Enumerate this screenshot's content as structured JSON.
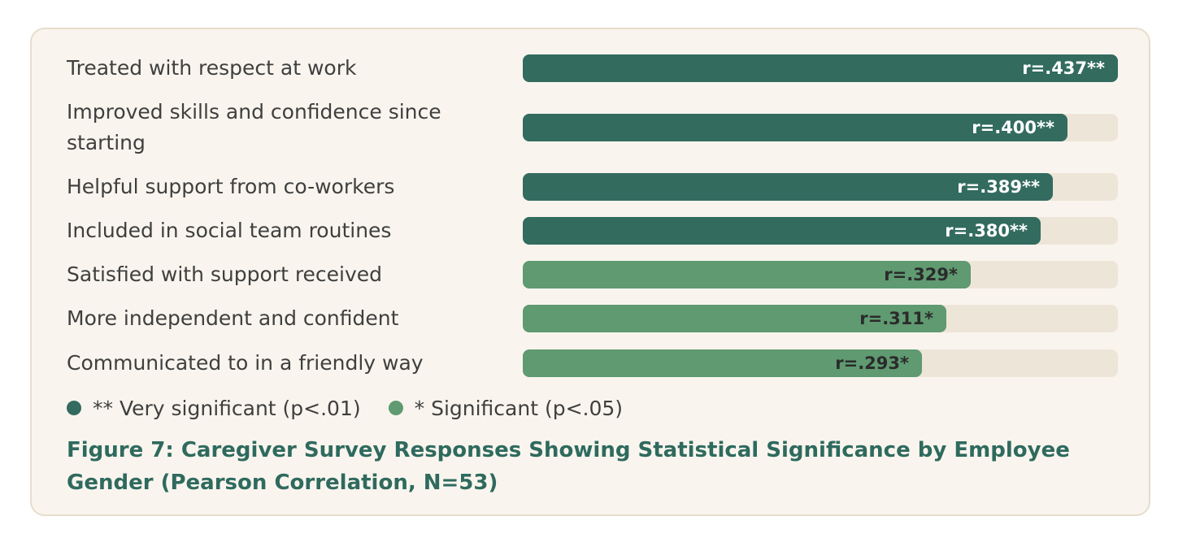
{
  "colors": {
    "very_significant": "#336b5f",
    "significant": "#5f9a71",
    "track": "#ede6d8",
    "label_light": "#ffffff",
    "label_dark": "#2b2b2b"
  },
  "chart_data": {
    "type": "bar",
    "orientation": "horizontal",
    "title": "Figure 7: Caregiver Survey Responses Showing Statistical Significance by Employee Gender (Pearson Correlation, N=53)",
    "xlim": [
      0,
      0.437
    ],
    "grid": false,
    "legend_placement": "bottom-left",
    "categories": [
      "Treated with respect at work",
      "Improved skills and confidence since starting",
      "Helpful support from co-workers",
      "Included in social team routines",
      "Satisfied with support received",
      "More independent and confident",
      "Communicated to in a friendly way"
    ],
    "values": [
      0.437,
      0.4,
      0.389,
      0.38,
      0.329,
      0.311,
      0.293
    ],
    "data_labels": [
      "r=.437**",
      "r=.400**",
      "r=.389**",
      "r=.380**",
      "r=.329*",
      "r=.311*",
      "r=.293*"
    ],
    "significance": [
      "very",
      "very",
      "very",
      "very",
      "sig",
      "sig",
      "sig"
    ],
    "legend": [
      {
        "key": "very",
        "label": "** Very significant (p<.01)"
      },
      {
        "key": "sig",
        "label": "* Significant (p<.05)"
      }
    ]
  }
}
